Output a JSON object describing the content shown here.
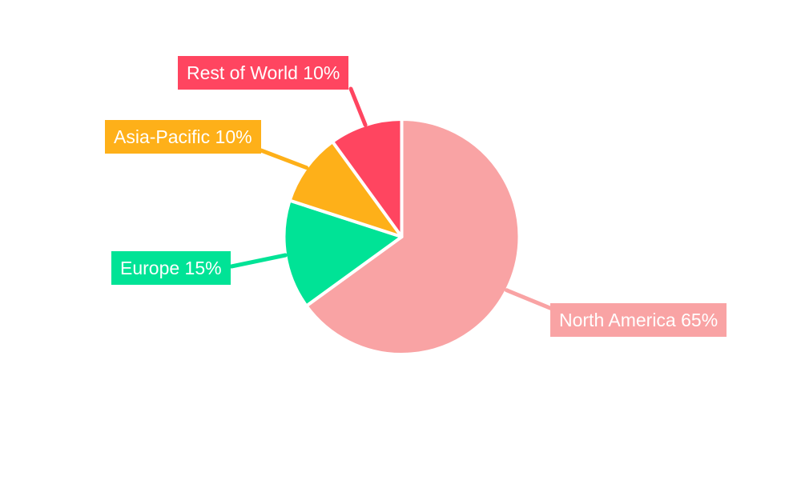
{
  "chart_data": {
    "type": "pie",
    "title": "",
    "categories": [
      "North America",
      "Europe",
      "Asia-Pacific",
      "Rest of World"
    ],
    "values": [
      65,
      15,
      10,
      10
    ],
    "unit": "%",
    "colors": [
      "#F9A3A4",
      "#00E396",
      "#FEB019",
      "#FF4560"
    ],
    "start_angle_deg": 0,
    "direction": "clockwise",
    "slice_gap_color": "#ffffff",
    "label_text_color": "#ffffff",
    "background": "#ffffff",
    "legend_position": "none",
    "callouts": [
      {
        "text": "North America 65%",
        "color": "#F9A3A4"
      },
      {
        "text": "Europe 15%",
        "color": "#00E396"
      },
      {
        "text": "Asia-Pacific 10%",
        "color": "#FEB019"
      },
      {
        "text": "Rest of World 10%",
        "color": "#FF4560"
      }
    ]
  }
}
